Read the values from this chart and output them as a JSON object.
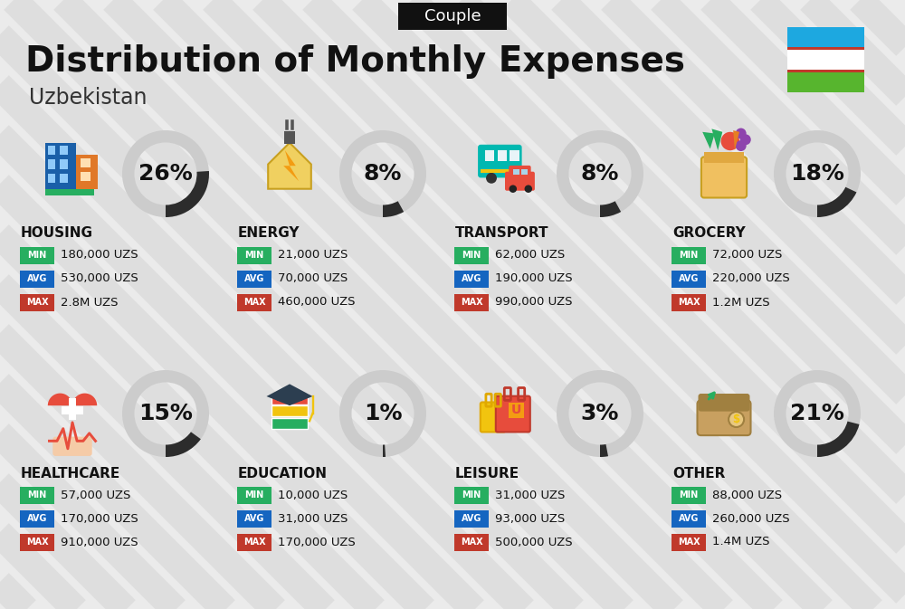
{
  "title": "Distribution of Monthly Expenses",
  "subtitle": "Uzbekistan",
  "badge": "Couple",
  "bg_color": "#ebebeb",
  "categories": [
    {
      "name": "HOUSING",
      "pct": 26,
      "min": "180,000 UZS",
      "avg": "530,000 UZS",
      "max": "2.8M UZS",
      "row": 0,
      "col": 0
    },
    {
      "name": "ENERGY",
      "pct": 8,
      "min": "21,000 UZS",
      "avg": "70,000 UZS",
      "max": "460,000 UZS",
      "row": 0,
      "col": 1
    },
    {
      "name": "TRANSPORT",
      "pct": 8,
      "min": "62,000 UZS",
      "avg": "190,000 UZS",
      "max": "990,000 UZS",
      "row": 0,
      "col": 2
    },
    {
      "name": "GROCERY",
      "pct": 18,
      "min": "72,000 UZS",
      "avg": "220,000 UZS",
      "max": "1.2M UZS",
      "row": 0,
      "col": 3
    },
    {
      "name": "HEALTHCARE",
      "pct": 15,
      "min": "57,000 UZS",
      "avg": "170,000 UZS",
      "max": "910,000 UZS",
      "row": 1,
      "col": 0
    },
    {
      "name": "EDUCATION",
      "pct": 1,
      "min": "10,000 UZS",
      "avg": "31,000 UZS",
      "max": "170,000 UZS",
      "row": 1,
      "col": 1
    },
    {
      "name": "LEISURE",
      "pct": 3,
      "min": "31,000 UZS",
      "avg": "93,000 UZS",
      "max": "500,000 UZS",
      "row": 1,
      "col": 2
    },
    {
      "name": "OTHER",
      "pct": 21,
      "min": "88,000 UZS",
      "avg": "260,000 UZS",
      "max": "1.4M UZS",
      "row": 1,
      "col": 3
    }
  ],
  "color_min": "#27ae60",
  "color_avg": "#1565c0",
  "color_max": "#c0392b",
  "ring_bg": "#cccccc",
  "ring_fg": "#2c2c2c",
  "title_fontsize": 28,
  "subtitle_fontsize": 17,
  "badge_fontsize": 13,
  "cat_name_fontsize": 11,
  "val_fontsize": 9.5,
  "pct_fontsize": 18
}
